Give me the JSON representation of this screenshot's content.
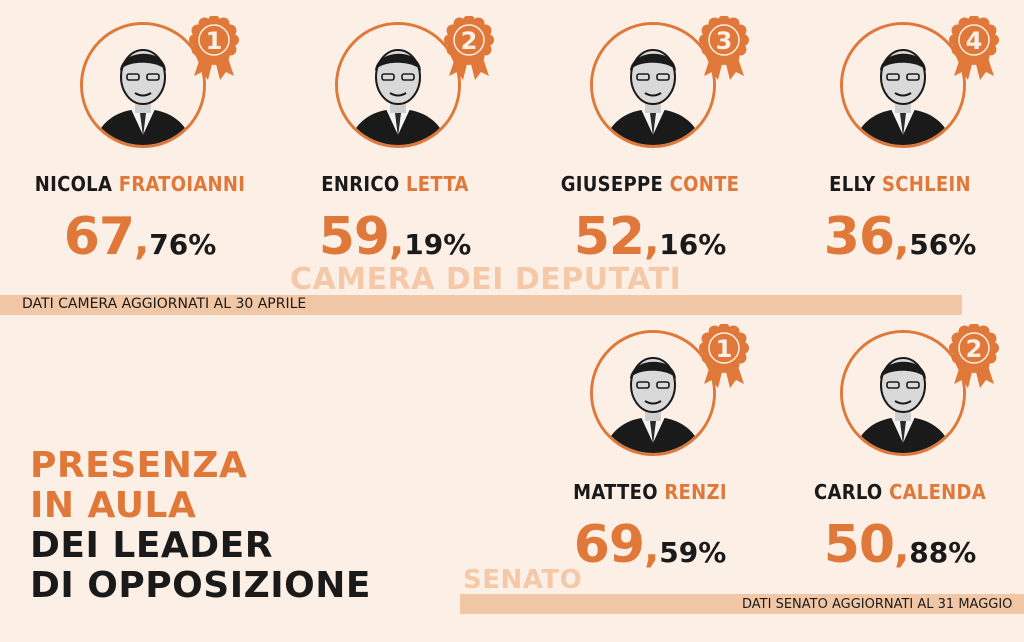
{
  "colors": {
    "accent": "#e0783a",
    "band": "#f2c7a5",
    "background": "#fbefe6",
    "text": "#1a1a1a"
  },
  "camera": {
    "section_title": "CAMERA DEI DEPUTATI",
    "note": "DATI CAMERA AGGIORNATI AL 30 APRILE",
    "leaders": [
      {
        "rank": "1",
        "first": "NICOLA",
        "last": "FRATOIANNI",
        "int": "67",
        "comma": ",",
        "dec": "76%",
        "value": 67.76
      },
      {
        "rank": "2",
        "first": "ENRICO",
        "last": "LETTA",
        "int": "59",
        "comma": ",",
        "dec": "19%",
        "value": 59.19
      },
      {
        "rank": "3",
        "first": "GIUSEPPE",
        "last": "CONTE",
        "int": "52",
        "comma": ",",
        "dec": "16%",
        "value": 52.16
      },
      {
        "rank": "4",
        "first": "ELLY",
        "last": "SCHLEIN",
        "int": "36",
        "comma": ",",
        "dec": "56%",
        "value": 36.56
      }
    ]
  },
  "senato": {
    "section_title": "SENATO",
    "note": "DATI SENATO AGGIORNATI AL 31 MAGGIO",
    "leaders": [
      {
        "rank": "1",
        "first": "MATTEO",
        "last": "RENZI",
        "int": "69",
        "comma": ",",
        "dec": "59%",
        "value": 69.59
      },
      {
        "rank": "2",
        "first": "CARLO",
        "last": "CALENDA",
        "int": "50",
        "comma": ",",
        "dec": "88%",
        "value": 50.88
      }
    ]
  },
  "headline": {
    "line1": "PRESENZA",
    "line2": "IN AULA",
    "line3": "DEI LEADER",
    "line4": "DI OPPOSIZIONE"
  },
  "icons": {
    "portrait": "person-portrait-icon",
    "medal": "rosette-medal-icon"
  }
}
